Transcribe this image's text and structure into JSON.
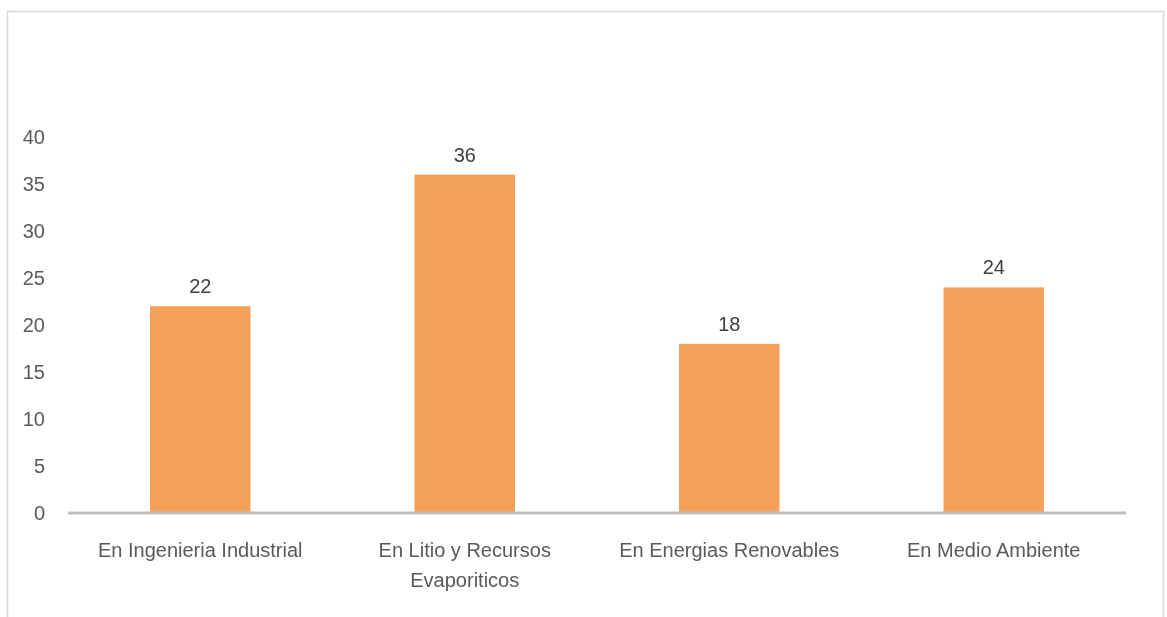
{
  "chart_data": {
    "type": "bar",
    "categories": [
      "En Ingenieria Industrial",
      "En Litio y Recursos Evaporiticos",
      "En Energias Renovables",
      "En Medio Ambiente"
    ],
    "values": [
      22,
      36,
      18,
      24
    ],
    "color": "#f5a15a",
    "ylim": [
      0,
      40
    ],
    "yticks": [
      0,
      5,
      10,
      15,
      20,
      25,
      30,
      35,
      40
    ],
    "data_labels": true
  }
}
